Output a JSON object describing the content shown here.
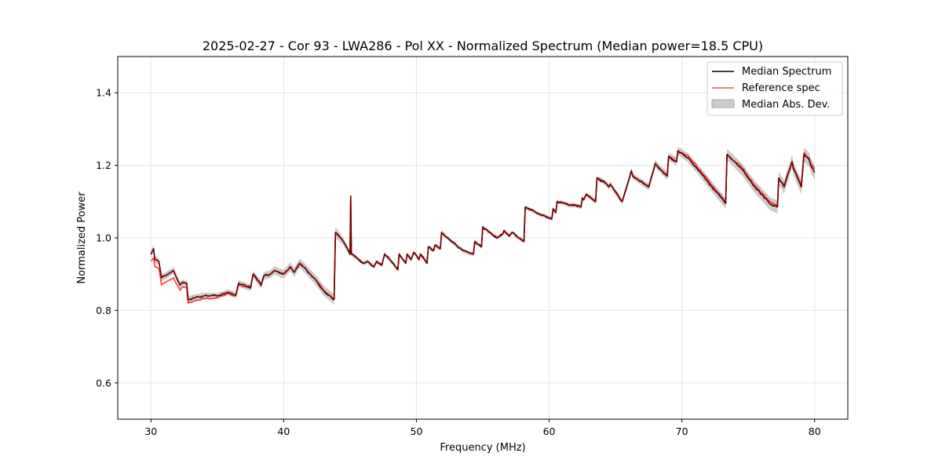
{
  "chart_data": {
    "type": "line",
    "title": "2025-02-27 - Cor 93 - LWA286 - Pol XX - Normalized Spectrum (Median power=18.5 CPU)",
    "xlabel": "Frequency (MHz)",
    "ylabel": "Normalized Power",
    "xlim": [
      27.5,
      82.5
    ],
    "ylim": [
      0.5,
      1.5
    ],
    "xticks": [
      30,
      40,
      50,
      60,
      70,
      80
    ],
    "yticks": [
      0.6,
      0.8,
      1.0,
      1.2,
      1.4
    ],
    "xtick_labels": [
      "30",
      "40",
      "50",
      "60",
      "70",
      "80"
    ],
    "ytick_labels": [
      "0.6",
      "0.8",
      "1.0",
      "1.2",
      "1.4"
    ],
    "grid": true,
    "legend_position": "top-right",
    "legend": [
      "Median Spectrum",
      "Reference spec",
      "Median Abs. Dev."
    ],
    "colors": {
      "median": "#000000",
      "reference": "#ff0000",
      "reference_overlap": "#8b0000",
      "mad_fill": "#bfbfbf",
      "grid": "#e6e6e6"
    },
    "series": [
      {
        "name": "Median Spectrum",
        "x": [
          30.0,
          30.2,
          30.3,
          30.6,
          30.8,
          31.5,
          31.7,
          32.2,
          32.3,
          32.7,
          32.8,
          33.2,
          34.0,
          35.0,
          35.8,
          36.0,
          36.4,
          36.6,
          37.5,
          37.7,
          38.3,
          38.5,
          39.0,
          39.3,
          40.0,
          40.5,
          40.8,
          41.2,
          41.5,
          42.0,
          42.5,
          43.0,
          43.8,
          43.9,
          44.5,
          45.0,
          45.05,
          45.1,
          45.5,
          46.0,
          46.3,
          46.8,
          47.0,
          47.4,
          47.6,
          48.0,
          48.6,
          48.7,
          49.2,
          49.3,
          49.6,
          49.8,
          50.2,
          50.3,
          50.8,
          50.9,
          51.3,
          51.4,
          51.8,
          51.9,
          52.5,
          53.0,
          53.5,
          54.0,
          54.3,
          54.4,
          54.9,
          55.0,
          55.7,
          56.1,
          56.5,
          56.6,
          57.0,
          57.2,
          57.7,
          58.1,
          58.2,
          59.0,
          59.3,
          59.7,
          60.2,
          60.3,
          60.5,
          60.6,
          61.0,
          61.5,
          62.0,
          62.4,
          62.5,
          62.6,
          62.8,
          63.5,
          63.6,
          64.3,
          64.5,
          64.6,
          65.5,
          66.2,
          66.3,
          67.5,
          68.0,
          68.1,
          68.9,
          69.0,
          69.6,
          69.7,
          70.5,
          71.5,
          72.5,
          73.3,
          73.4,
          74.5,
          75.5,
          76.5,
          76.6,
          77.2,
          77.3,
          77.7,
          78.3,
          78.4,
          79.0,
          79.2,
          79.3,
          79.6,
          79.7,
          80.0
        ],
        "values": [
          0.955,
          0.97,
          0.94,
          0.935,
          0.89,
          0.905,
          0.91,
          0.87,
          0.875,
          0.875,
          0.83,
          0.835,
          0.84,
          0.84,
          0.85,
          0.848,
          0.842,
          0.875,
          0.862,
          0.9,
          0.87,
          0.895,
          0.9,
          0.91,
          0.9,
          0.92,
          0.905,
          0.93,
          0.92,
          0.9,
          0.88,
          0.855,
          0.83,
          1.015,
          0.99,
          0.955,
          1.115,
          0.955,
          0.945,
          0.93,
          0.935,
          0.92,
          0.935,
          0.925,
          0.955,
          0.94,
          0.912,
          0.955,
          0.93,
          0.955,
          0.94,
          0.96,
          0.94,
          0.955,
          0.93,
          0.975,
          0.965,
          0.98,
          0.97,
          1.015,
          0.995,
          0.98,
          0.965,
          0.958,
          0.955,
          0.99,
          0.975,
          1.03,
          1.01,
          1.0,
          1.01,
          1.02,
          1.005,
          1.015,
          1.0,
          0.99,
          1.085,
          1.07,
          1.065,
          1.06,
          1.052,
          1.08,
          1.07,
          1.1,
          1.097,
          1.09,
          1.09,
          1.085,
          1.11,
          1.105,
          1.12,
          1.1,
          1.165,
          1.15,
          1.14,
          1.148,
          1.1,
          1.185,
          1.17,
          1.14,
          1.205,
          1.2,
          1.17,
          1.225,
          1.21,
          1.24,
          1.22,
          1.175,
          1.13,
          1.095,
          1.23,
          1.19,
          1.14,
          1.1,
          1.095,
          1.085,
          1.165,
          1.14,
          1.21,
          1.19,
          1.14,
          1.23,
          1.225,
          1.215,
          1.2,
          1.18
        ]
      },
      {
        "name": "Reference spec",
        "x": [
          30.0,
          30.2,
          30.3,
          30.6,
          30.8,
          31.5,
          31.7,
          32.2,
          32.3,
          32.7,
          32.8,
          33.2,
          34.0,
          35.0,
          35.8,
          36.0,
          36.4,
          36.6,
          37.5,
          37.7,
          38.3,
          38.5,
          39.0,
          39.3,
          40.0,
          40.5,
          40.8,
          41.2,
          41.5,
          42.0,
          42.5,
          43.0,
          43.8,
          43.9,
          44.5,
          45.0,
          45.05,
          45.1,
          45.5,
          46.0,
          46.3,
          46.8,
          47.0,
          47.4,
          47.6,
          48.0,
          48.6,
          48.7,
          49.2,
          49.3,
          49.6,
          49.8,
          50.2,
          50.3,
          50.8,
          50.9,
          51.3,
          51.4,
          51.8,
          51.9,
          52.5,
          53.0,
          53.5,
          54.0,
          54.3,
          54.4,
          54.9,
          55.0,
          55.7,
          56.1,
          56.5,
          56.6,
          57.0,
          57.2,
          57.7,
          58.1,
          58.2,
          59.0,
          59.3,
          59.7,
          60.2,
          60.3,
          60.5,
          60.6,
          61.0,
          61.5,
          62.0,
          62.4,
          62.5,
          62.6,
          62.8,
          63.5,
          63.6,
          64.3,
          64.5,
          64.6,
          65.5,
          66.2,
          66.3,
          67.5,
          68.0,
          68.1,
          68.9,
          69.0,
          69.6,
          69.7,
          70.5,
          71.5,
          72.5,
          73.3,
          73.4,
          74.5,
          75.5,
          76.5,
          76.6,
          77.2,
          77.3,
          77.7,
          78.3,
          78.4,
          79.0,
          79.2,
          79.3,
          79.6,
          79.7,
          80.0
        ],
        "values": [
          0.935,
          0.945,
          0.92,
          0.915,
          0.87,
          0.885,
          0.89,
          0.855,
          0.862,
          0.862,
          0.82,
          0.826,
          0.832,
          0.836,
          0.846,
          0.844,
          0.84,
          0.87,
          0.86,
          0.9,
          0.868,
          0.895,
          0.9,
          0.91,
          0.9,
          0.92,
          0.905,
          0.93,
          0.92,
          0.9,
          0.88,
          0.855,
          0.83,
          1.015,
          0.99,
          0.955,
          1.115,
          0.955,
          0.945,
          0.93,
          0.935,
          0.92,
          0.935,
          0.925,
          0.955,
          0.94,
          0.912,
          0.955,
          0.93,
          0.955,
          0.94,
          0.96,
          0.94,
          0.955,
          0.93,
          0.975,
          0.965,
          0.98,
          0.97,
          1.015,
          0.995,
          0.98,
          0.965,
          0.958,
          0.955,
          0.99,
          0.975,
          1.03,
          1.01,
          1.0,
          1.01,
          1.02,
          1.005,
          1.015,
          1.0,
          0.99,
          1.085,
          1.07,
          1.065,
          1.06,
          1.052,
          1.08,
          1.07,
          1.1,
          1.097,
          1.09,
          1.09,
          1.085,
          1.11,
          1.105,
          1.12,
          1.1,
          1.165,
          1.15,
          1.14,
          1.148,
          1.1,
          1.185,
          1.17,
          1.14,
          1.205,
          1.2,
          1.17,
          1.225,
          1.21,
          1.24,
          1.225,
          1.18,
          1.135,
          1.1,
          1.23,
          1.195,
          1.145,
          1.105,
          1.1,
          1.09,
          1.165,
          1.145,
          1.21,
          1.195,
          1.145,
          1.235,
          1.23,
          1.22,
          1.205,
          1.19
        ]
      },
      {
        "name": "Median Abs. Dev.",
        "type": "band",
        "half_width_x": [
          30,
          36,
          40,
          44,
          45,
          58,
          62,
          66,
          70,
          74,
          80
        ],
        "half_width": [
          0.01,
          0.008,
          0.012,
          0.015,
          0.006,
          0.005,
          0.006,
          0.008,
          0.012,
          0.016,
          0.02
        ]
      }
    ]
  }
}
